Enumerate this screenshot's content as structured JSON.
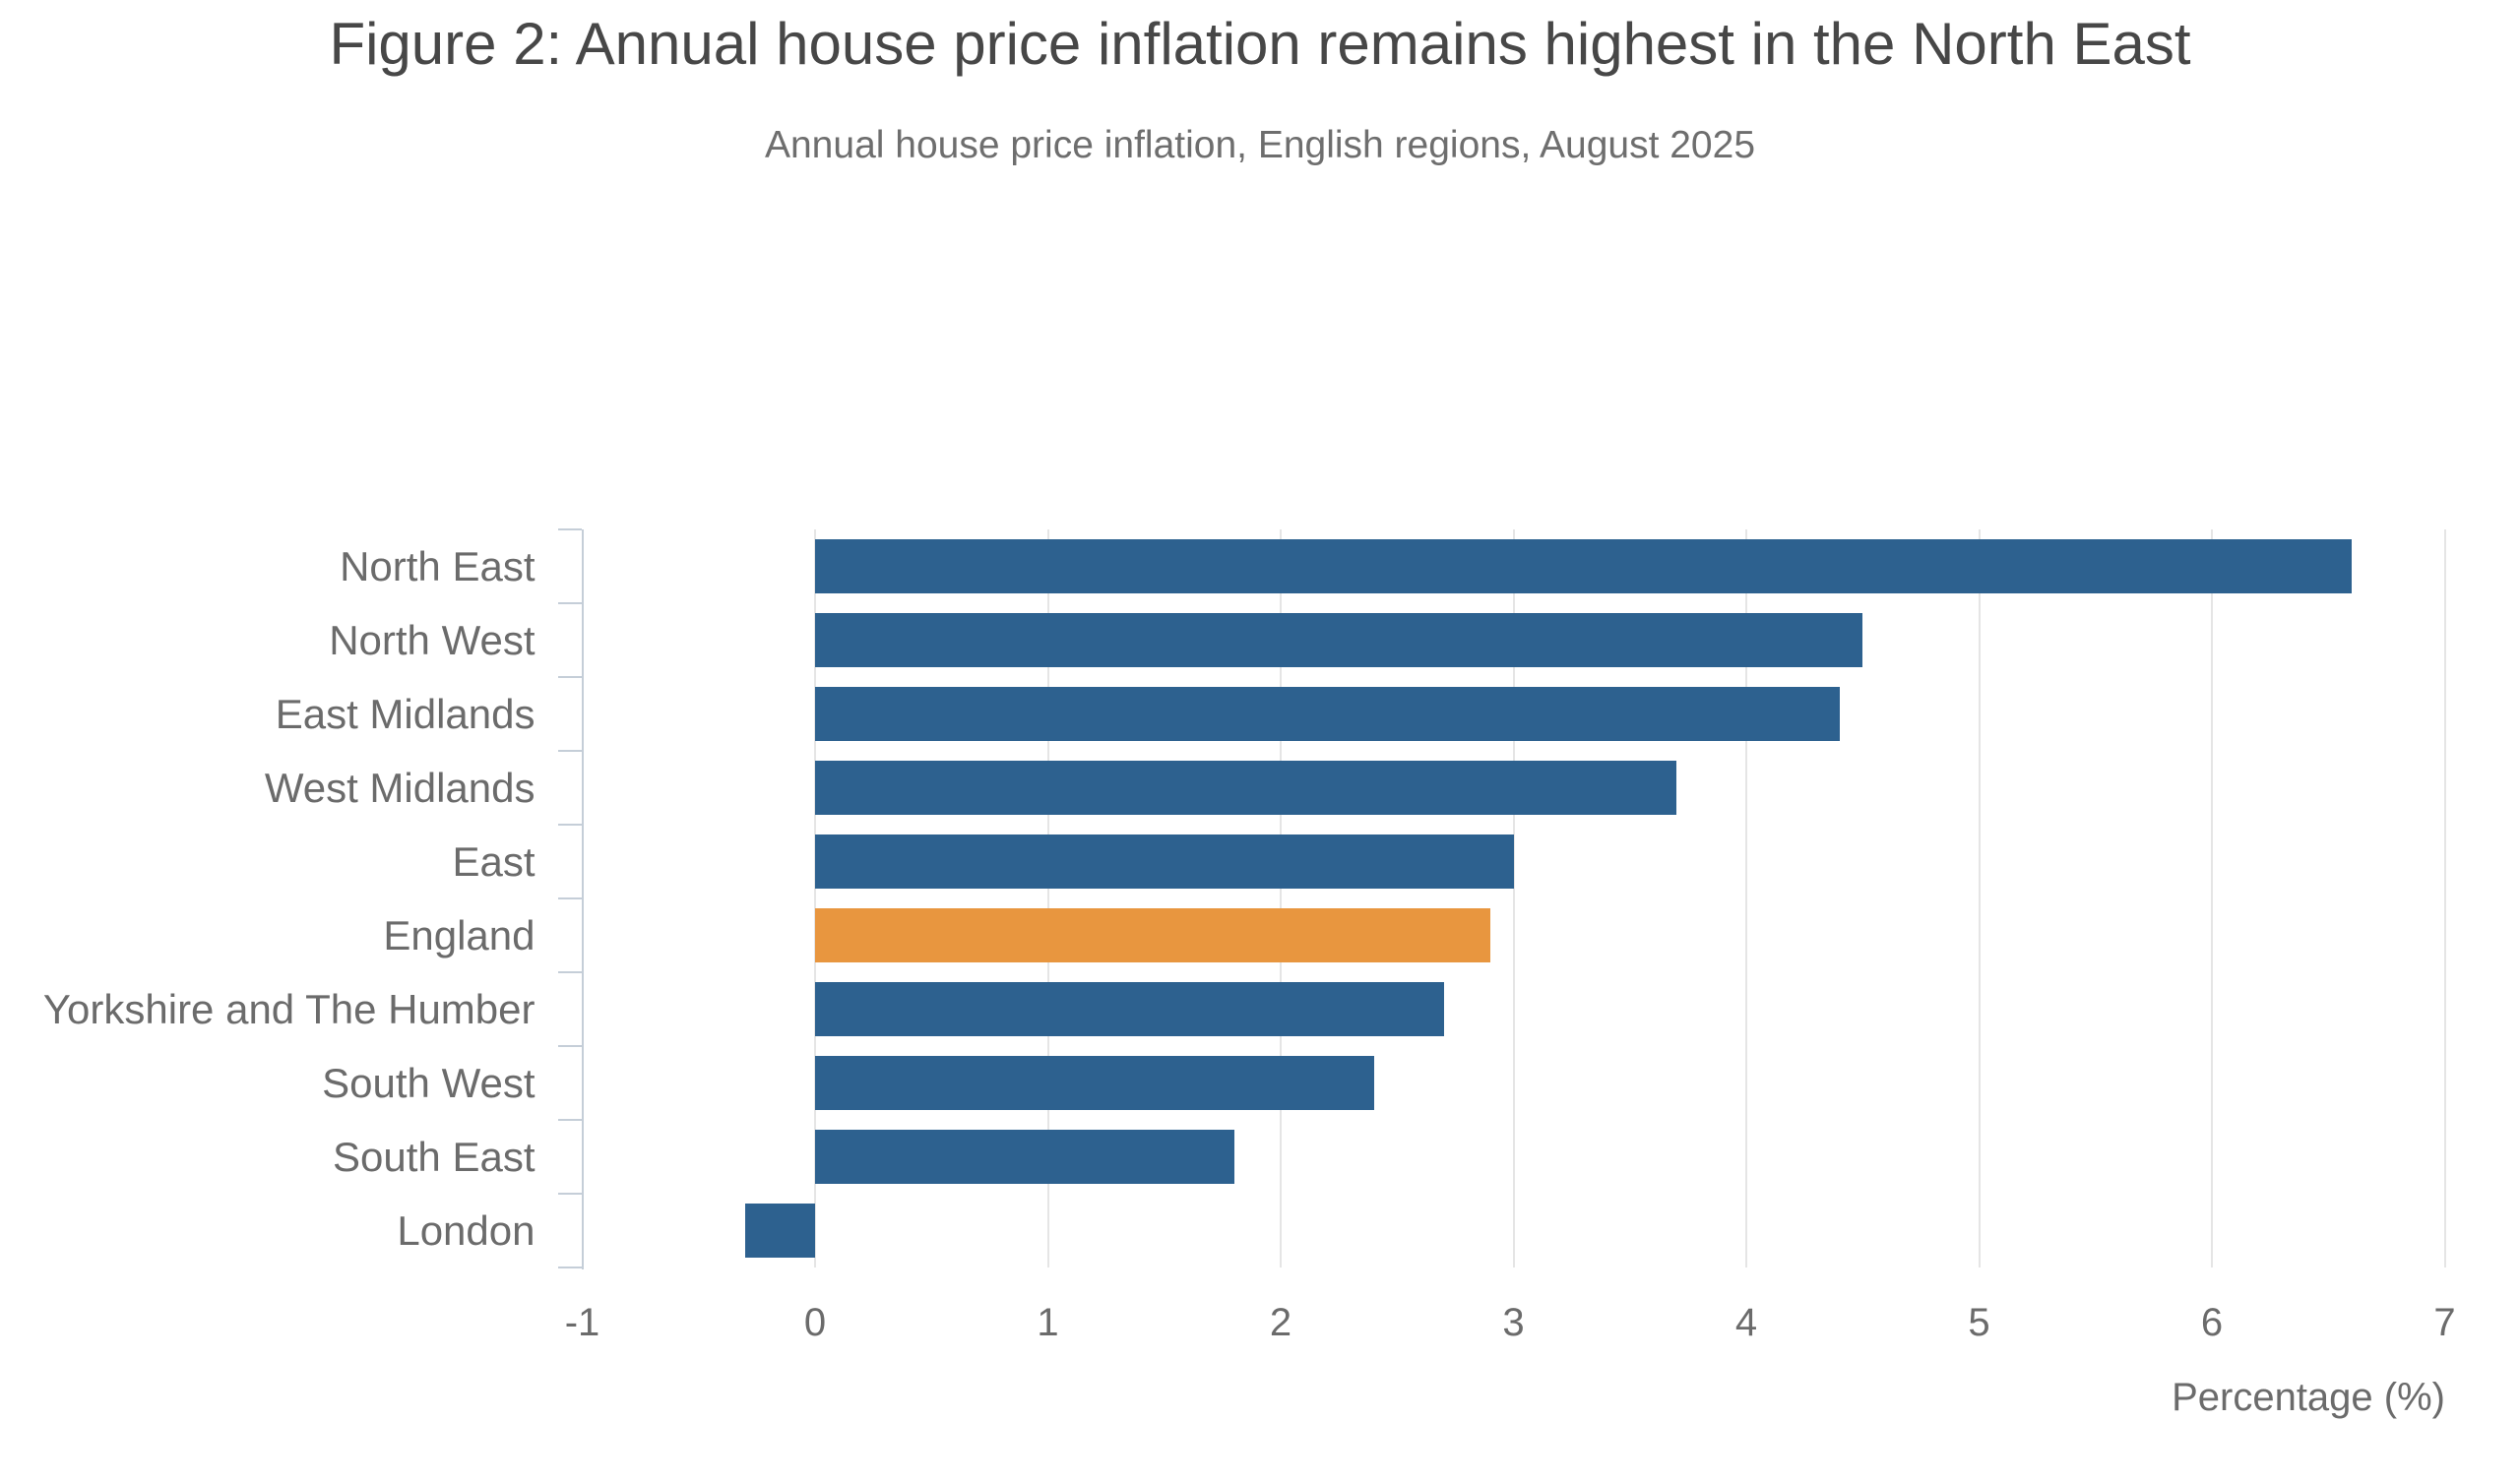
{
  "chart_data": {
    "type": "bar",
    "orientation": "horizontal",
    "title": "Figure 2: Annual house price inflation remains highest in the North East",
    "subtitle": "Annual house price inflation, English regions, August 2025",
    "xlabel": "Percentage (%)",
    "ylabel": "",
    "xlim": [
      -1,
      7
    ],
    "xticks": [
      -1,
      0,
      1,
      2,
      3,
      4,
      5,
      6,
      7
    ],
    "categories": [
      "North East",
      "North West",
      "East Midlands",
      "West Midlands",
      "East",
      "England",
      "Yorkshire and The Humber",
      "South West",
      "South East",
      "London"
    ],
    "values": [
      6.6,
      4.5,
      4.4,
      3.7,
      3.0,
      2.9,
      2.7,
      2.4,
      1.8,
      -0.3
    ],
    "highlight_category": "England",
    "grid": "vertical-only",
    "legend": "none",
    "colors": {
      "bar": "#2d618f",
      "highlight_bar": "#e8963f",
      "gridline": "#e5e5e5",
      "axis": "#c5ced8",
      "title_text": "#474747",
      "muted_text": "#6b6b6b"
    }
  }
}
